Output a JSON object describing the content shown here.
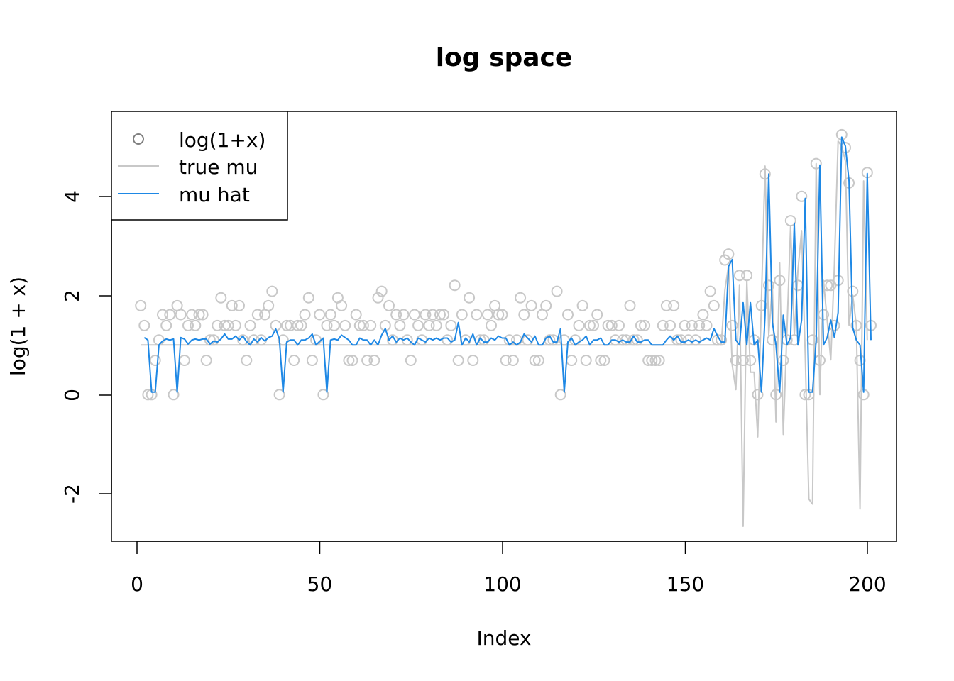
{
  "chart_data": {
    "type": "scatter",
    "title": "log space",
    "xlabel": "Index",
    "ylabel": "log(1 + x)",
    "xlim": [
      -7,
      208
    ],
    "ylim": [
      -2.95,
      5.7
    ],
    "xticks": [
      "0",
      "50",
      "100",
      "150",
      "200"
    ],
    "yticks": [
      "-2",
      "0",
      "2",
      "4"
    ],
    "legend_position": "top-left",
    "legend": [
      "log(1+x)",
      "true mu",
      "mu hat"
    ],
    "colors": {
      "points": "#c8c8c8",
      "true_mu": "#c8c8c8",
      "mu_hat": "#1e88e5",
      "legend_marker": "#7f7f7f"
    },
    "points": [
      [
        1,
        1.79
      ],
      [
        2,
        1.39
      ],
      [
        3,
        0
      ],
      [
        4,
        0
      ],
      [
        5,
        0.69
      ],
      [
        6,
        1.1
      ],
      [
        7,
        1.61
      ],
      [
        8,
        1.39
      ],
      [
        9,
        1.61
      ],
      [
        10,
        0
      ],
      [
        11,
        1.79
      ],
      [
        12,
        1.61
      ],
      [
        13,
        0.69
      ],
      [
        14,
        1.39
      ],
      [
        15,
        1.61
      ],
      [
        16,
        1.39
      ],
      [
        17,
        1.61
      ],
      [
        18,
        1.61
      ],
      [
        19,
        0.69
      ],
      [
        20,
        1.1
      ],
      [
        21,
        1.1
      ],
      [
        22,
        1.39
      ],
      [
        23,
        1.95
      ],
      [
        24,
        1.39
      ],
      [
        25,
        1.39
      ],
      [
        26,
        1.79
      ],
      [
        27,
        1.39
      ],
      [
        28,
        1.79
      ],
      [
        29,
        1.1
      ],
      [
        30,
        0.69
      ],
      [
        31,
        1.39
      ],
      [
        32,
        1.1
      ],
      [
        33,
        1.61
      ],
      [
        34,
        1.1
      ],
      [
        35,
        1.61
      ],
      [
        36,
        1.79
      ],
      [
        37,
        2.08
      ],
      [
        38,
        1.39
      ],
      [
        39,
        0
      ],
      [
        40,
        1.1
      ],
      [
        41,
        1.39
      ],
      [
        42,
        1.39
      ],
      [
        43,
        0.69
      ],
      [
        44,
        1.39
      ],
      [
        45,
        1.39
      ],
      [
        46,
        1.61
      ],
      [
        47,
        1.95
      ],
      [
        48,
        0.69
      ],
      [
        49,
        1.1
      ],
      [
        50,
        1.61
      ],
      [
        51,
        0
      ],
      [
        52,
        1.39
      ],
      [
        53,
        1.61
      ],
      [
        54,
        1.39
      ],
      [
        55,
        1.95
      ],
      [
        56,
        1.79
      ],
      [
        57,
        1.39
      ],
      [
        58,
        0.69
      ],
      [
        59,
        0.69
      ],
      [
        60,
        1.61
      ],
      [
        61,
        1.39
      ],
      [
        62,
        1.39
      ],
      [
        63,
        0.69
      ],
      [
        64,
        1.39
      ],
      [
        65,
        0.69
      ],
      [
        66,
        1.95
      ],
      [
        67,
        2.08
      ],
      [
        68,
        1.39
      ],
      [
        69,
        1.79
      ],
      [
        70,
        1.1
      ],
      [
        71,
        1.61
      ],
      [
        72,
        1.39
      ],
      [
        73,
        1.61
      ],
      [
        74,
        1.1
      ],
      [
        75,
        0.69
      ],
      [
        76,
        1.61
      ],
      [
        77,
        1.39
      ],
      [
        78,
        1.1
      ],
      [
        79,
        1.61
      ],
      [
        80,
        1.39
      ],
      [
        81,
        1.61
      ],
      [
        82,
        1.39
      ],
      [
        83,
        1.61
      ],
      [
        84,
        1.61
      ],
      [
        85,
        1.1
      ],
      [
        86,
        1.39
      ],
      [
        87,
        2.2
      ],
      [
        88,
        0.69
      ],
      [
        89,
        1.61
      ],
      [
        90,
        1.1
      ],
      [
        91,
        1.95
      ],
      [
        92,
        0.69
      ],
      [
        93,
        1.61
      ],
      [
        94,
        1.1
      ],
      [
        95,
        1.1
      ],
      [
        96,
        1.61
      ],
      [
        97,
        1.39
      ],
      [
        98,
        1.79
      ],
      [
        99,
        1.61
      ],
      [
        100,
        1.61
      ],
      [
        101,
        0.69
      ],
      [
        102,
        1.1
      ],
      [
        103,
        0.69
      ],
      [
        104,
        1.1
      ],
      [
        105,
        1.95
      ],
      [
        106,
        1.61
      ],
      [
        107,
        1.1
      ],
      [
        108,
        1.79
      ],
      [
        109,
        0.69
      ],
      [
        110,
        0.69
      ],
      [
        111,
        1.61
      ],
      [
        112,
        1.79
      ],
      [
        113,
        1.1
      ],
      [
        114,
        1.1
      ],
      [
        115,
        2.08
      ],
      [
        116,
        0
      ],
      [
        117,
        1.1
      ],
      [
        118,
        1.61
      ],
      [
        119,
        0.69
      ],
      [
        120,
        1.1
      ],
      [
        121,
        1.39
      ],
      [
        122,
        1.79
      ],
      [
        123,
        0.69
      ],
      [
        124,
        1.39
      ],
      [
        125,
        1.39
      ],
      [
        126,
        1.61
      ],
      [
        127,
        0.69
      ],
      [
        128,
        0.69
      ],
      [
        129,
        1.39
      ],
      [
        130,
        1.39
      ],
      [
        131,
        1.1
      ],
      [
        132,
        1.39
      ],
      [
        133,
        1.1
      ],
      [
        134,
        1.1
      ],
      [
        135,
        1.79
      ],
      [
        136,
        1.1
      ],
      [
        137,
        1.1
      ],
      [
        138,
        1.39
      ],
      [
        139,
        1.39
      ],
      [
        140,
        0.69
      ],
      [
        141,
        0.69
      ],
      [
        142,
        0.69
      ],
      [
        143,
        0.69
      ],
      [
        144,
        1.39
      ],
      [
        145,
        1.79
      ],
      [
        146,
        1.39
      ],
      [
        147,
        1.79
      ],
      [
        148,
        1.1
      ],
      [
        149,
        1.1
      ],
      [
        150,
        1.39
      ],
      [
        151,
        1.1
      ],
      [
        152,
        1.39
      ],
      [
        153,
        1.1
      ],
      [
        154,
        1.39
      ],
      [
        155,
        1.61
      ],
      [
        156,
        1.39
      ],
      [
        157,
        2.08
      ],
      [
        158,
        1.79
      ],
      [
        159,
        1.1
      ],
      [
        160,
        1.1
      ],
      [
        161,
        2.71
      ],
      [
        162,
        2.83
      ],
      [
        163,
        1.39
      ],
      [
        164,
        0.69
      ],
      [
        165,
        2.4
      ],
      [
        166,
        0.69
      ],
      [
        167,
        2.4
      ],
      [
        168,
        0.69
      ],
      [
        169,
        1.1
      ],
      [
        170,
        0
      ],
      [
        171,
        1.79
      ],
      [
        172,
        4.44
      ],
      [
        173,
        2.2
      ],
      [
        174,
        1.1
      ],
      [
        175,
        0
      ],
      [
        176,
        2.3
      ],
      [
        177,
        0.69
      ],
      [
        178,
        1.1
      ],
      [
        179,
        3.5
      ],
      [
        180,
        1.1
      ],
      [
        181,
        2.2
      ],
      [
        182,
        3.99
      ],
      [
        183,
        0
      ],
      [
        184,
        0
      ],
      [
        185,
        1.1
      ],
      [
        186,
        4.65
      ],
      [
        187,
        0.69
      ],
      [
        188,
        1.61
      ],
      [
        189,
        2.2
      ],
      [
        190,
        2.2
      ],
      [
        191,
        1.39
      ],
      [
        192,
        2.3
      ],
      [
        193,
        5.23
      ],
      [
        194,
        4.97
      ],
      [
        195,
        4.26
      ],
      [
        196,
        2.08
      ],
      [
        197,
        1.39
      ],
      [
        198,
        0.69
      ],
      [
        199,
        0
      ],
      [
        200,
        4.47
      ],
      [
        201,
        1.39
      ]
    ],
    "true_mu_series": [
      [
        1,
        1
      ],
      [
        159,
        1
      ],
      [
        160,
        1
      ],
      [
        161,
        2.1
      ],
      [
        162,
        2.6
      ],
      [
        163,
        0.6
      ],
      [
        164,
        0.1
      ],
      [
        165,
        2.2
      ],
      [
        166,
        -2.65
      ],
      [
        167,
        2.3
      ],
      [
        168,
        0.45
      ],
      [
        169,
        0.45
      ],
      [
        170,
        -0.85
      ],
      [
        171,
        1.9
      ],
      [
        172,
        4.6
      ],
      [
        173,
        1.2
      ],
      [
        174,
        2.2
      ],
      [
        175,
        -0.55
      ],
      [
        176,
        2.65
      ],
      [
        177,
        -0.8
      ],
      [
        178,
        1.3
      ],
      [
        179,
        3.4
      ],
      [
        180,
        1.2
      ],
      [
        181,
        2.5
      ],
      [
        182,
        3.3
      ],
      [
        183,
        0.8
      ],
      [
        184,
        -2.1
      ],
      [
        185,
        -2.2
      ],
      [
        186,
        4.65
      ],
      [
        187,
        0
      ],
      [
        188,
        2.3
      ],
      [
        189,
        1.5
      ],
      [
        190,
        0.7
      ],
      [
        191,
        2.6
      ],
      [
        192,
        5.1
      ],
      [
        193,
        5.0
      ],
      [
        194,
        4.7
      ],
      [
        195,
        1.4
      ],
      [
        196,
        2.0
      ],
      [
        197,
        1.4
      ],
      [
        198,
        -2.3
      ],
      [
        199,
        4.3
      ],
      [
        200,
        1.1
      ]
    ],
    "mu_hat_series": [
      [
        2,
        1.15
      ],
      [
        3,
        1.1
      ],
      [
        4,
        0.05
      ],
      [
        5,
        0.05
      ],
      [
        6,
        1.0
      ],
      [
        7,
        1.08
      ],
      [
        8,
        1.12
      ],
      [
        9,
        1.1
      ],
      [
        10,
        1.12
      ],
      [
        11,
        0.05
      ],
      [
        12,
        1.15
      ],
      [
        13,
        1.12
      ],
      [
        14,
        1.02
      ],
      [
        15,
        1.1
      ],
      [
        16,
        1.12
      ],
      [
        17,
        1.1
      ],
      [
        18,
        1.12
      ],
      [
        19,
        1.12
      ],
      [
        20,
        1.02
      ],
      [
        21,
        1.08
      ],
      [
        22,
        1.06
      ],
      [
        23,
        1.12
      ],
      [
        24,
        1.22
      ],
      [
        25,
        1.12
      ],
      [
        26,
        1.12
      ],
      [
        27,
        1.18
      ],
      [
        28,
        1.1
      ],
      [
        29,
        1.18
      ],
      [
        30,
        1.07
      ],
      [
        31,
        1.0
      ],
      [
        32,
        1.12
      ],
      [
        33,
        1.06
      ],
      [
        34,
        1.15
      ],
      [
        35,
        1.08
      ],
      [
        36,
        1.15
      ],
      [
        37,
        1.18
      ],
      [
        38,
        1.32
      ],
      [
        39,
        1.12
      ],
      [
        40,
        0.05
      ],
      [
        41,
        1.06
      ],
      [
        42,
        1.1
      ],
      [
        43,
        1.1
      ],
      [
        44,
        1.0
      ],
      [
        45,
        1.1
      ],
      [
        46,
        1.1
      ],
      [
        47,
        1.14
      ],
      [
        48,
        1.22
      ],
      [
        49,
        1.0
      ],
      [
        50,
        1.07
      ],
      [
        51,
        1.14
      ],
      [
        52,
        0.05
      ],
      [
        53,
        1.1
      ],
      [
        54,
        1.12
      ],
      [
        55,
        1.1
      ],
      [
        56,
        1.2
      ],
      [
        57,
        1.15
      ],
      [
        58,
        1.1
      ],
      [
        59,
        1.0
      ],
      [
        60,
        1.0
      ],
      [
        61,
        1.14
      ],
      [
        62,
        1.1
      ],
      [
        63,
        1.1
      ],
      [
        64,
        1.0
      ],
      [
        65,
        1.1
      ],
      [
        66,
        1.0
      ],
      [
        67,
        1.2
      ],
      [
        68,
        1.33
      ],
      [
        69,
        1.1
      ],
      [
        70,
        1.18
      ],
      [
        71,
        1.06
      ],
      [
        72,
        1.14
      ],
      [
        73,
        1.1
      ],
      [
        74,
        1.14
      ],
      [
        75,
        1.06
      ],
      [
        76,
        1.0
      ],
      [
        77,
        1.14
      ],
      [
        78,
        1.1
      ],
      [
        79,
        1.06
      ],
      [
        80,
        1.14
      ],
      [
        81,
        1.1
      ],
      [
        82,
        1.14
      ],
      [
        83,
        1.1
      ],
      [
        84,
        1.14
      ],
      [
        85,
        1.14
      ],
      [
        86,
        1.06
      ],
      [
        87,
        1.1
      ],
      [
        88,
        1.45
      ],
      [
        89,
        1.0
      ],
      [
        90,
        1.14
      ],
      [
        91,
        1.06
      ],
      [
        92,
        1.22
      ],
      [
        93,
        1.0
      ],
      [
        94,
        1.14
      ],
      [
        95,
        1.06
      ],
      [
        96,
        1.06
      ],
      [
        97,
        1.14
      ],
      [
        98,
        1.1
      ],
      [
        99,
        1.18
      ],
      [
        100,
        1.14
      ],
      [
        101,
        1.14
      ],
      [
        102,
        1.0
      ],
      [
        103,
        1.06
      ],
      [
        104,
        1.0
      ],
      [
        105,
        1.06
      ],
      [
        106,
        1.22
      ],
      [
        107,
        1.14
      ],
      [
        108,
        1.06
      ],
      [
        109,
        1.18
      ],
      [
        110,
        1.0
      ],
      [
        111,
        1.0
      ],
      [
        112,
        1.14
      ],
      [
        113,
        1.18
      ],
      [
        114,
        1.06
      ],
      [
        115,
        1.06
      ],
      [
        116,
        1.33
      ],
      [
        117,
        0.05
      ],
      [
        118,
        1.06
      ],
      [
        119,
        1.14
      ],
      [
        120,
        1.0
      ],
      [
        121,
        1.06
      ],
      [
        122,
        1.1
      ],
      [
        123,
        1.18
      ],
      [
        124,
        1.0
      ],
      [
        125,
        1.1
      ],
      [
        126,
        1.1
      ],
      [
        127,
        1.14
      ],
      [
        128,
        1.0
      ],
      [
        129,
        1.0
      ],
      [
        130,
        1.1
      ],
      [
        131,
        1.1
      ],
      [
        132,
        1.06
      ],
      [
        133,
        1.1
      ],
      [
        134,
        1.06
      ],
      [
        135,
        1.06
      ],
      [
        136,
        1.18
      ],
      [
        137,
        1.06
      ],
      [
        138,
        1.06
      ],
      [
        139,
        1.1
      ],
      [
        140,
        1.1
      ],
      [
        141,
        1.0
      ],
      [
        142,
        1.0
      ],
      [
        143,
        1.0
      ],
      [
        144,
        1.0
      ],
      [
        145,
        1.1
      ],
      [
        146,
        1.18
      ],
      [
        147,
        1.1
      ],
      [
        148,
        1.18
      ],
      [
        149,
        1.06
      ],
      [
        150,
        1.06
      ],
      [
        151,
        1.1
      ],
      [
        152,
        1.06
      ],
      [
        153,
        1.1
      ],
      [
        154,
        1.06
      ],
      [
        155,
        1.1
      ],
      [
        156,
        1.14
      ],
      [
        157,
        1.1
      ],
      [
        158,
        1.33
      ],
      [
        159,
        1.18
      ],
      [
        160,
        1.06
      ],
      [
        161,
        1.06
      ],
      [
        162,
        2.58
      ],
      [
        163,
        2.72
      ],
      [
        164,
        1.1
      ],
      [
        165,
        1.0
      ],
      [
        166,
        1.85
      ],
      [
        167,
        1.0
      ],
      [
        168,
        1.85
      ],
      [
        169,
        1.0
      ],
      [
        170,
        1.1
      ],
      [
        171,
        0.05
      ],
      [
        172,
        1.6
      ],
      [
        173,
        4.44
      ],
      [
        174,
        1.45
      ],
      [
        175,
        1.0
      ],
      [
        176,
        0.05
      ],
      [
        177,
        1.6
      ],
      [
        178,
        1.0
      ],
      [
        179,
        1.15
      ],
      [
        180,
        3.45
      ],
      [
        181,
        1.0
      ],
      [
        182,
        1.5
      ],
      [
        183,
        3.95
      ],
      [
        184,
        0.05
      ],
      [
        185,
        0.05
      ],
      [
        186,
        1.1
      ],
      [
        187,
        4.62
      ],
      [
        188,
        1.0
      ],
      [
        189,
        1.15
      ],
      [
        190,
        1.5
      ],
      [
        191,
        1.15
      ],
      [
        192,
        1.65
      ],
      [
        193,
        5.18
      ],
      [
        194,
        5.0
      ],
      [
        195,
        4.3
      ],
      [
        196,
        1.35
      ],
      [
        197,
        1.1
      ],
      [
        198,
        1.0
      ],
      [
        199,
        0.05
      ],
      [
        200,
        4.45
      ],
      [
        201,
        1.1
      ]
    ]
  }
}
